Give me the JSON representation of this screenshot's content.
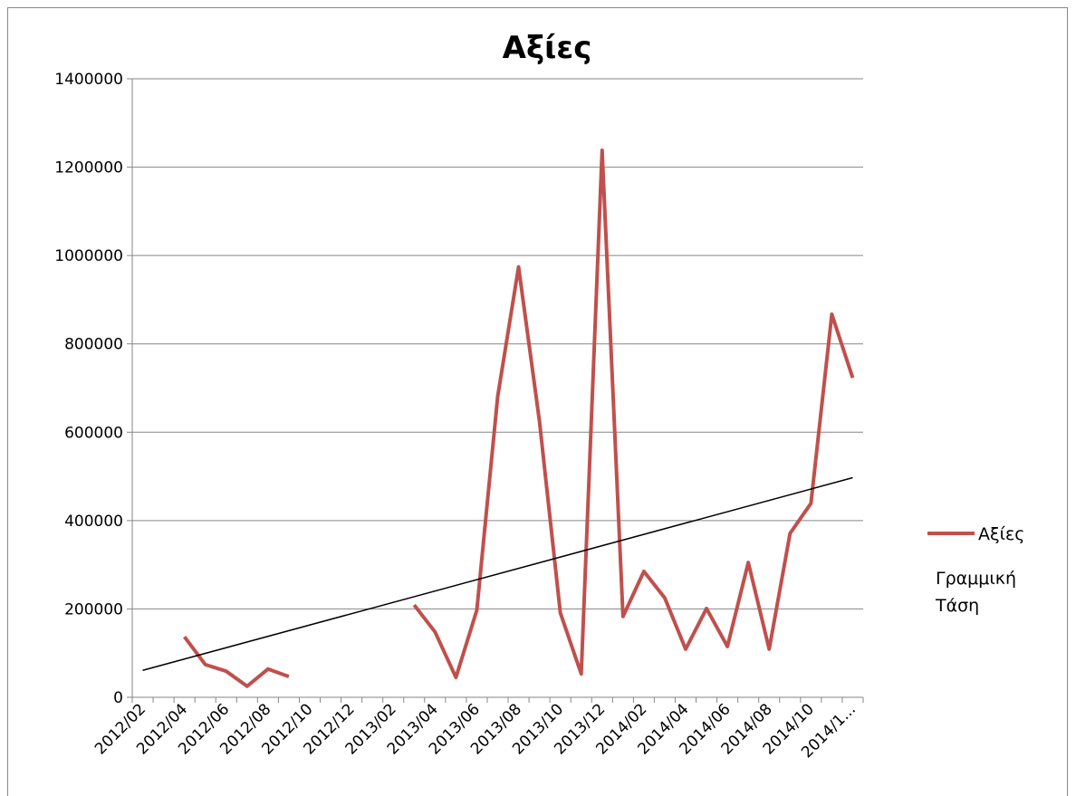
{
  "chart_data": {
    "type": "line",
    "title": "Αξίες",
    "categories": [
      "2012/02",
      null,
      "2012/04",
      null,
      "2012/06",
      null,
      "2012/08",
      null,
      "2012/10",
      null,
      "2012/12",
      null,
      "2013/02",
      null,
      "2013/04",
      null,
      "2013/06",
      null,
      "2013/08",
      null,
      "2013/10",
      null,
      "2013/12",
      null,
      "2014/02",
      null,
      "2014/04",
      null,
      "2014/06",
      null,
      "2014/08",
      null,
      "2014/10",
      null,
      "2014/1..."
    ],
    "series": [
      {
        "name": "Αξίες",
        "color": "#c0504d",
        "values": [
          null,
          null,
          137000,
          74000,
          59000,
          25000,
          64000,
          47000,
          null,
          null,
          null,
          null,
          null,
          209000,
          148000,
          45000,
          197000,
          681000,
          974000,
          625000,
          191000,
          53000,
          1238000,
          183000,
          285000,
          225000,
          109000,
          201000,
          115000,
          305000,
          109000,
          371000,
          439000,
          867000,
          723000
        ]
      }
    ],
    "trendline": {
      "name": "Γραμμική Τάση",
      "color": "#000000",
      "values": [
        61000,
        497000
      ]
    },
    "ylim": [
      0,
      1400000
    ],
    "yticks": [
      0,
      200000,
      400000,
      600000,
      800000,
      1000000,
      1200000,
      1400000
    ],
    "grid": true,
    "legend": "right"
  }
}
